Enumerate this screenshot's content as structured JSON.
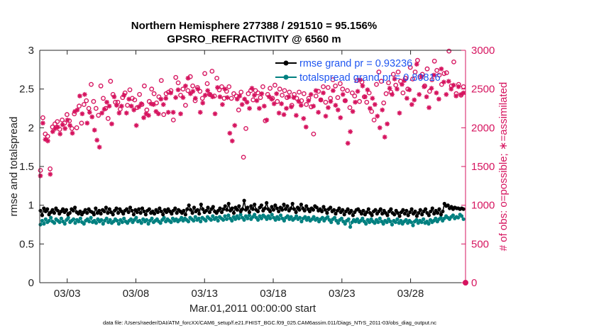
{
  "chart_data": {
    "type": "line",
    "title_line1": "Northern Hemisphere 277388 / 291510 = 95.156%",
    "title_line2": "GPSRO_REFRACTIVITY @ 6560 m",
    "xlabel": "Mar.01,2011 00:00:00 start",
    "ylabel_left": "rmse and totalspread",
    "ylabel_right": "# of obs: o=possible; ∗=assimilated",
    "xlim": [
      1.0,
      32.0
    ],
    "ylim_left": [
      0,
      3
    ],
    "ylim_right": [
      0,
      3000
    ],
    "x_ticks": [
      {
        "value": 3,
        "label": "03/03"
      },
      {
        "value": 8,
        "label": "03/08"
      },
      {
        "value": 13,
        "label": "03/13"
      },
      {
        "value": 18,
        "label": "03/18"
      },
      {
        "value": 23,
        "label": "03/23"
      },
      {
        "value": 28,
        "label": "03/28"
      }
    ],
    "y_ticks_left": [
      "0",
      "0.5",
      "1",
      "1.5",
      "2",
      "2.5",
      "3"
    ],
    "y_ticks_right": [
      "0",
      "500",
      "1000",
      "1500",
      "2000",
      "2500",
      "3000"
    ],
    "grid": false,
    "legend_location": "top-right",
    "colors": {
      "rmse": "#000000",
      "spread": "#008080",
      "obs": "#d6145f",
      "legend_text": "#1f56f0"
    },
    "series": [
      {
        "name": "rmse grand pr = 0.93236",
        "axis": "left",
        "marker": "filled-circle",
        "values": [
          0.93,
          0.87,
          0.96,
          0.92,
          0.95,
          0.88,
          0.91,
          0.94,
          0.9,
          0.96,
          0.93,
          0.89,
          0.92,
          0.95,
          0.91,
          0.94,
          0.88,
          0.9,
          0.95,
          0.93,
          0.97,
          0.91,
          0.89,
          0.92,
          0.88,
          0.91,
          0.94,
          0.9,
          0.95,
          0.92,
          0.91,
          0.88,
          0.96,
          0.9,
          0.93,
          0.89,
          0.94,
          0.92,
          0.97,
          0.9,
          0.95,
          0.91,
          0.88,
          0.93,
          0.96,
          0.9,
          0.95,
          0.92,
          0.89,
          0.93,
          0.95,
          0.91,
          0.97,
          0.93,
          0.88,
          0.94,
          0.91,
          0.95,
          0.9,
          0.96,
          0.92,
          0.88,
          0.93,
          0.95,
          0.9,
          0.92,
          0.89,
          0.94,
          0.91,
          0.96,
          0.92,
          0.88,
          0.94,
          0.91,
          0.95,
          0.92,
          0.89,
          0.93,
          0.96,
          0.9,
          0.94,
          0.92,
          0.9,
          0.93,
          0.88,
          0.95,
          1.0,
          0.94,
          0.9,
          0.97,
          0.92,
          0.94,
          0.89,
          1.01,
          0.95,
          0.91,
          0.93,
          0.97,
          0.91,
          0.95,
          0.98,
          0.92,
          0.9,
          0.93,
          0.96,
          0.91,
          0.95,
          0.99,
          0.94,
          1.02,
          0.93,
          0.96,
          0.9,
          0.97,
          0.94,
          0.99,
          0.92,
          0.95,
          1.06,
          0.94,
          0.97,
          0.91,
          0.99,
          0.95,
          1.01,
          0.94,
          0.92,
          0.97,
          1.0,
          0.93,
          0.96,
          1.03,
          0.95,
          0.92,
          0.98,
          0.94,
          1.0,
          0.96,
          0.92,
          0.97,
          0.94,
          1.01,
          0.95,
          0.99,
          0.93,
          0.96,
          1.02,
          0.95,
          0.91,
          0.97,
          0.94,
          1.01,
          0.96,
          0.93,
          0.99,
          0.95,
          0.92,
          0.96,
          0.94,
          0.99,
          0.97,
          0.93,
          0.95,
          0.92,
          0.98,
          0.94,
          0.9,
          0.95,
          0.97,
          0.92,
          0.94,
          0.89,
          0.93,
          0.96,
          0.91,
          0.94,
          0.88,
          0.92,
          0.95,
          0.9,
          0.93,
          0.87,
          0.91,
          0.94,
          0.95,
          0.92,
          0.89,
          0.93,
          0.88,
          0.91,
          0.95,
          0.9,
          0.87,
          0.92,
          0.94,
          0.89,
          0.92,
          0.95,
          0.89,
          0.93,
          0.9,
          0.87,
          0.92,
          0.95,
          0.9,
          0.88,
          0.93,
          0.9,
          0.86,
          0.91,
          0.94,
          0.89,
          0.93,
          0.87,
          0.91,
          0.95,
          0.89,
          0.92,
          0.86,
          0.9,
          0.94,
          0.88,
          0.92,
          0.95,
          0.9,
          0.87,
          0.92,
          0.96,
          0.89,
          0.93,
          0.9,
          0.95,
          0.88,
          0.92,
          1.02,
          0.99,
          1.0,
          0.96,
          0.98,
          0.95,
          0.97,
          0.96,
          0.96,
          0.95,
          0.96,
          0.95
        ]
      },
      {
        "name": "totalspread grand pr = 0.80816",
        "axis": "left",
        "marker": "filled-circle",
        "values": [
          0.75,
          0.8,
          0.76,
          0.82,
          0.78,
          0.8,
          0.84,
          0.79,
          0.77,
          0.82,
          0.8,
          0.78,
          0.83,
          0.79,
          0.76,
          0.81,
          0.84,
          0.78,
          0.8,
          0.82,
          0.77,
          0.81,
          0.79,
          0.83,
          0.78,
          0.76,
          0.8,
          0.82,
          0.79,
          0.84,
          0.78,
          0.8,
          0.77,
          0.82,
          0.79,
          0.81,
          0.76,
          0.8,
          0.83,
          0.78,
          0.81,
          0.77,
          0.79,
          0.82,
          0.8,
          0.76,
          0.81,
          0.78,
          0.83,
          0.79,
          0.77,
          0.8,
          0.82,
          0.78,
          0.81,
          0.84,
          0.79,
          0.8,
          0.77,
          0.82,
          0.79,
          0.81,
          0.76,
          0.8,
          0.83,
          0.78,
          0.8,
          0.82,
          0.79,
          0.77,
          0.81,
          0.84,
          0.79,
          0.82,
          0.8,
          0.78,
          0.83,
          0.8,
          0.82,
          0.79,
          0.81,
          0.84,
          0.8,
          0.83,
          0.81,
          0.79,
          0.84,
          0.82,
          0.8,
          0.85,
          0.81,
          0.83,
          0.79,
          0.84,
          0.82,
          0.8,
          0.85,
          0.83,
          0.81,
          0.86,
          0.82,
          0.84,
          0.8,
          0.85,
          0.83,
          0.81,
          0.86,
          0.82,
          0.87,
          0.83,
          0.8,
          0.85,
          0.82,
          0.86,
          0.83,
          0.88,
          0.84,
          0.81,
          0.86,
          0.83,
          0.87,
          0.82,
          0.85,
          0.88,
          0.84,
          0.81,
          0.86,
          0.83,
          0.87,
          0.85,
          0.82,
          0.86,
          0.83,
          0.88,
          0.84,
          0.81,
          0.85,
          0.82,
          0.87,
          0.83,
          0.8,
          0.84,
          0.86,
          0.82,
          0.85,
          0.81,
          0.83,
          0.86,
          0.82,
          0.84,
          0.79,
          0.83,
          0.85,
          0.81,
          0.84,
          0.8,
          0.82,
          0.85,
          0.81,
          0.83,
          0.79,
          0.82,
          0.84,
          0.8,
          0.83,
          0.85,
          0.81,
          0.78,
          0.82,
          0.84,
          0.8,
          0.77,
          0.81,
          0.83,
          0.79,
          0.76,
          0.8,
          0.82,
          0.72,
          0.78,
          0.81,
          0.79,
          0.82,
          0.78,
          0.8,
          0.83,
          0.79,
          0.76,
          0.81,
          0.78,
          0.82,
          0.79,
          0.77,
          0.81,
          0.78,
          0.83,
          0.79,
          0.76,
          0.8,
          0.78,
          0.82,
          0.79,
          0.75,
          0.8,
          0.78,
          0.82,
          0.77,
          0.8,
          0.76,
          0.79,
          0.81,
          0.77,
          0.8,
          0.78,
          0.74,
          0.79,
          0.81,
          0.77,
          0.8,
          0.78,
          0.82,
          0.77,
          0.79,
          0.76,
          0.81,
          0.78,
          0.8,
          0.83,
          0.79,
          0.82,
          0.84,
          0.8,
          0.83,
          0.86,
          0.84,
          0.82,
          0.85,
          0.87,
          0.83,
          0.85,
          0.84,
          0.88,
          0.86,
          0.82
        ]
      },
      {
        "name": "obs possible",
        "axis": "right",
        "marker": "open-circle",
        "values": [
          1450,
          2130,
          1920,
          1890,
          1470,
          2010,
          2050,
          2080,
          1980,
          2100,
          2060,
          2170,
          2090,
          1990,
          2180,
          2000,
          2280,
          2060,
          2300,
          2350,
          2250,
          2560,
          2340,
          2250,
          2160,
          2540,
          2380,
          2250,
          2120,
          2600,
          2430,
          2330,
          2330,
          2240,
          2390,
          2450,
          2290,
          2490,
          2380,
          2360,
          2260,
          2430,
          2300,
          2540,
          2230,
          2340,
          2500,
          2440,
          2320,
          2400,
          2610,
          2170,
          2440,
          2460,
          2480,
          2100,
          2650,
          2580,
          2420,
          2500,
          2290,
          2480,
          2660,
          2540,
          2350,
          2520,
          2470,
          2380,
          2700,
          2570,
          2430,
          2730,
          2410,
          2640,
          2490,
          2530,
          2380,
          2470,
          2530,
          2380,
          2440,
          2410,
          2230,
          2460,
          1620,
          1990,
          2440,
          2480,
          2360,
          2480,
          2450,
          2390,
          2530,
          2090,
          2430,
          2510,
          2380,
          2550,
          2340,
          2500,
          2420,
          2480,
          2390,
          2460,
          2290,
          2430,
          2380,
          2460,
          2350,
          2440,
          2300,
          2380,
          2270,
          1920,
          2410,
          2470,
          2360,
          2530,
          2330,
          2520,
          2380,
          2620,
          2540,
          2390,
          2570,
          2500,
          2350,
          2480,
          2260,
          2450,
          2410,
          2610,
          2340,
          2590,
          2400,
          2330,
          2450,
          2210,
          2100,
          2560,
          2720,
          2600,
          2320,
          2440,
          2580,
          2460,
          2690,
          2550,
          2720,
          2600,
          2450,
          2640,
          2500,
          2780,
          2630,
          2720,
          2870,
          2660,
          2690,
          2540,
          2760,
          2470,
          2620,
          2860,
          2740,
          2680,
          2560,
          2700,
          2710,
          2990,
          2540,
          2850,
          2440,
          2560,
          2420,
          2530
        ]
      },
      {
        "name": "obs assimilated",
        "axis": "right",
        "marker": "star",
        "values": [
          1380,
          2060,
          1850,
          1830,
          1400,
          1950,
          1990,
          2010,
          1920,
          2040,
          1990,
          2100,
          2030,
          1930,
          2210,
          2230,
          2410,
          2180,
          2430,
          2060,
          2200,
          2140,
          1970,
          1840,
          1750,
          2190,
          2240,
          2330,
          2280,
          2050,
          2400,
          2290,
          2190,
          2280,
          2420,
          2190,
          2370,
          2280,
          2230,
          2030,
          2270,
          2310,
          2130,
          2180,
          2160,
          2310,
          2300,
          2210,
          2180,
          2370,
          2300,
          2380,
          2200,
          2450,
          2200,
          2390,
          2490,
          2180,
          2390,
          2540,
          2640,
          2440,
          2470,
          2380,
          2500,
          2200,
          2320,
          2420,
          2480,
          2430,
          2400,
          2180,
          2520,
          2400,
          2300,
          2500,
          2390,
          1930,
          1830,
          2030,
          2370,
          2410,
          2300,
          2370,
          2330,
          2250,
          2510,
          2420,
          2350,
          2250,
          2440,
          2280,
          2100,
          2400,
          2370,
          2310,
          2440,
          2190,
          2310,
          2170,
          2250,
          2400,
          2270,
          2390,
          2160,
          2340,
          2290,
          2120,
          2010,
          2350,
          2430,
          2280,
          2480,
          2200,
          2360,
          2450,
          2150,
          2260,
          2340,
          2480,
          2290,
          2230,
          2130,
          2430,
          2350,
          1800,
          1950,
          2210,
          2330,
          2470,
          2620,
          2540,
          2400,
          2490,
          2250,
          2380,
          2300,
          2150,
          2000,
          2230,
          1880,
          2050,
          2510,
          2430,
          2630,
          2500,
          2190,
          2560,
          2610,
          2380,
          2490,
          2300,
          2360,
          2820,
          2430,
          2660,
          2530,
          2400,
          2260,
          2510,
          2680,
          2450,
          2370,
          2760,
          2590,
          2430,
          2600,
          2500,
          2550,
          2410,
          2530,
          2430,
          2450
        ]
      }
    ]
  },
  "footer": {
    "data_file": "data file: /Users/raeder/DAI/ATM_forcXX/CAM6_setup/f.e21.FHIST_BGC.f09_025.CAM6assim.011/Diags_NTrS_2011-03/obs_diag_output.nc"
  }
}
